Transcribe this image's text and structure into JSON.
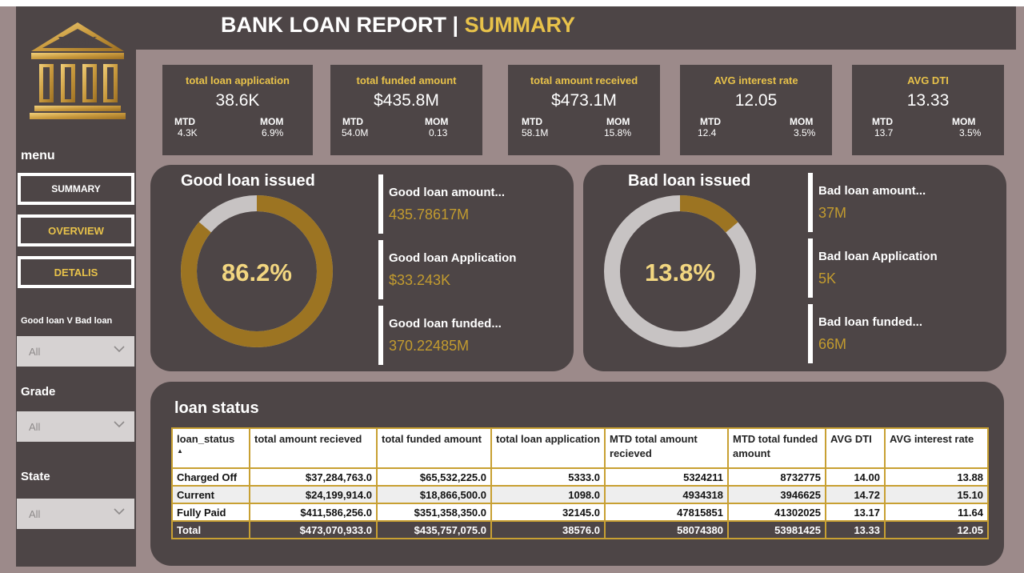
{
  "header": {
    "title": "BANK LOAN REPORT | ",
    "title_accent": "SUMMARY"
  },
  "logo": {
    "text": "BANK"
  },
  "colors": {
    "panel": "#4d4546",
    "background": "#9c8a8a",
    "accent": "#e8c24a",
    "gold": "#b8862b",
    "ring_gray": "#c7c3c3"
  },
  "sidebar": {
    "menu_label": "menu",
    "nav": [
      "SUMMARY",
      "OVERVIEW",
      "DETALIS"
    ],
    "filters": [
      {
        "label": "Good loan V Bad loan",
        "value": "All"
      },
      {
        "label": "Grade",
        "value": "All"
      },
      {
        "label": "State",
        "value": "All"
      }
    ]
  },
  "kpis": [
    {
      "label": "total loan application",
      "value": "38.6K",
      "mtd_label": "MTD",
      "mtd": "4.3K",
      "mom_label": "MOM",
      "mom": "6.9%"
    },
    {
      "label": "total funded amount",
      "value": "$435.8M",
      "mtd_label": "MTD",
      "mtd": "54.0M",
      "mom_label": "MOM",
      "mom": "0.13"
    },
    {
      "label": "total amount received",
      "value": "$473.1M",
      "mtd_label": "MTD",
      "mtd": "58.1M",
      "mom_label": "MOM",
      "mom": "15.8%"
    },
    {
      "label": "AVG interest rate",
      "value": "12.05",
      "mtd_label": "MTD",
      "mtd": "12.4",
      "mom_label": "MOM",
      "mom": "3.5%"
    },
    {
      "label": "AVG DTI",
      "value": "13.33",
      "mtd_label": "MTD",
      "mtd": "13.7",
      "mom_label": "MOM",
      "mom": "3.5%"
    }
  ],
  "good_loan": {
    "title": "Good loan issued",
    "percent_label": "86.2%",
    "percent": 86.2,
    "stats": [
      {
        "label": "Good loan amount...",
        "value": "435.78617M"
      },
      {
        "label": "Good loan Application",
        "value": "$33.243K"
      },
      {
        "label": "Good loan funded...",
        "value": "370.22485M"
      }
    ]
  },
  "bad_loan": {
    "title": "Bad loan issued",
    "percent_label": "13.8%",
    "percent": 13.8,
    "stats": [
      {
        "label": "Bad loan amount...",
        "value": "37M"
      },
      {
        "label": "Bad loan Application",
        "value": "5K"
      },
      {
        "label": "Bad loan funded...",
        "value": "66M"
      }
    ]
  },
  "loan_status": {
    "title": "loan status",
    "sort_icon": "sort-ascending-icon",
    "columns": [
      "loan_status",
      "total amount recieved",
      "total funded amount",
      "total loan application",
      "MTD total amount recieved",
      "MTD total funded amount",
      "AVG DTI",
      "AVG interest rate"
    ],
    "rows": [
      [
        "Charged Off",
        "$37,284,763.0",
        "$65,532,225.0",
        "5333.0",
        "5324211",
        "8732775",
        "14.00",
        "13.88"
      ],
      [
        "Current",
        "$24,199,914.0",
        "$18,866,500.0",
        "1098.0",
        "4934318",
        "3946625",
        "14.72",
        "15.10"
      ],
      [
        "Fully Paid",
        "$411,586,256.0",
        "$351,358,350.0",
        "32145.0",
        "47815851",
        "41302025",
        "13.17",
        "11.64"
      ]
    ],
    "total": [
      "Total",
      "$473,070,933.0",
      "$435,757,075.0",
      "38576.0",
      "58074380",
      "53981425",
      "13.33",
      "12.05"
    ]
  }
}
